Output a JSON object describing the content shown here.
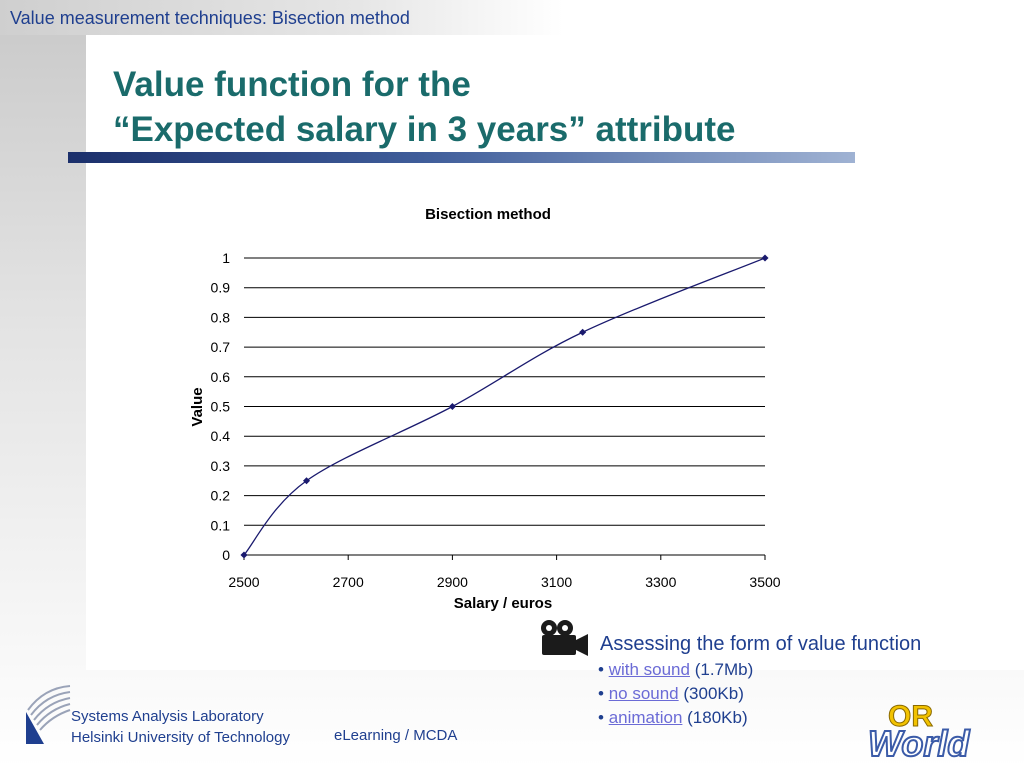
{
  "header": {
    "section_title": "Value measurement techniques: Bisection method"
  },
  "slide": {
    "title_line1": "Value function for the",
    "title_line2": "“Expected salary in 3 years” attribute"
  },
  "chart_data": {
    "type": "line",
    "title": "Bisection method",
    "xlabel": "Salary / euros",
    "ylabel": "Value",
    "xlim": [
      2500,
      3500
    ],
    "ylim": [
      0,
      1
    ],
    "xticks": [
      "2500",
      "2700",
      "2900",
      "3100",
      "3300",
      "3500"
    ],
    "yticks": [
      "0",
      "0.1",
      "0.2",
      "0.3",
      "0.4",
      "0.5",
      "0.6",
      "0.7",
      "0.8",
      "0.9",
      "1"
    ],
    "grid": "horizontal",
    "line_color": "#1a1a6e",
    "series": [
      {
        "x": [
          2500,
          2620,
          2900,
          3150,
          3500
        ],
        "y": [
          0,
          0.25,
          0.5,
          0.75,
          1
        ]
      }
    ]
  },
  "video": {
    "icon": "movie-camera-icon",
    "heading": "Assessing the form of value function",
    "links": [
      {
        "label": "with sound",
        "size": "(1.7Mb)"
      },
      {
        "label": "no sound",
        "size": "(300Kb)"
      },
      {
        "label": "animation",
        "size": "(180Kb)"
      }
    ]
  },
  "footer": {
    "lab_line1": "Systems Analysis Laboratory",
    "lab_line2": "Helsinki University of Technology",
    "course": "eLearning / MCDA",
    "logo_text_top": "OR",
    "logo_text_bottom": "World"
  },
  "colors": {
    "title": "#1a6b6b",
    "text_blue": "#1f3f8f",
    "link": "#6b6bd6"
  }
}
